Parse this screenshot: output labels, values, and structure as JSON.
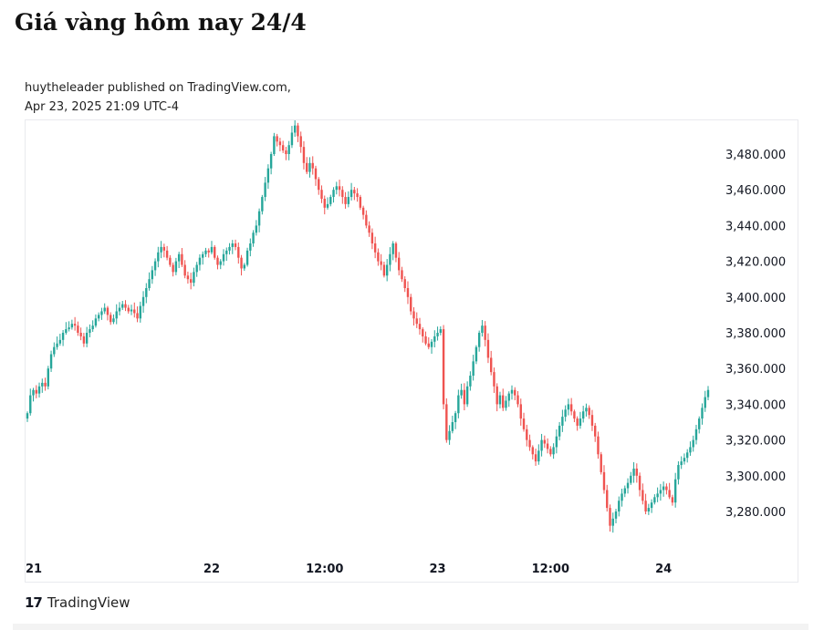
{
  "page": {
    "title": "Giá vàng hôm nay 24/4",
    "byline": "huytheleader published on TradingView.com,",
    "timestamp": "Apr 23, 2025 21:09 UTC-4",
    "brand_logo": "17",
    "brand_name": "TradingView",
    "brand_icon": "tradingview-logo-icon"
  },
  "colors": {
    "up": "#26a69a",
    "down": "#ef5350"
  },
  "chart_data": {
    "type": "candlestick",
    "title": "",
    "xlabel": "",
    "ylabel": "",
    "ylim": [
      3260,
      3500
    ],
    "y_ticks": [
      {
        "value": 3480,
        "label": "3,480.000"
      },
      {
        "value": 3460,
        "label": "3,460.000"
      },
      {
        "value": 3440,
        "label": "3,440.000"
      },
      {
        "value": 3420,
        "label": "3,420.000"
      },
      {
        "value": 3400,
        "label": "3,400.000"
      },
      {
        "value": 3380,
        "label": "3,380.000"
      },
      {
        "value": 3360,
        "label": "3,360.000"
      },
      {
        "value": 3340,
        "label": "3,340.000"
      },
      {
        "value": 3320,
        "label": "3,320.000"
      },
      {
        "value": 3300,
        "label": "3,300.000"
      },
      {
        "value": 3280,
        "label": "3,280.000"
      }
    ],
    "x_ticks": [
      {
        "label": "21",
        "index": 0
      },
      {
        "label": "22",
        "index": 62
      },
      {
        "label": "12:00",
        "index": 100
      },
      {
        "label": "23",
        "index": 138
      },
      {
        "label": "12:00",
        "index": 176
      },
      {
        "label": "24",
        "index": 214
      }
    ],
    "series": [
      {
        "closes": [
          3335,
          3345,
          3348,
          3346,
          3350,
          3352,
          3350,
          3360,
          3368,
          3372,
          3374,
          3376,
          3380,
          3382,
          3383,
          3385,
          3384,
          3380,
          3378,
          3374,
          3380,
          3382,
          3384,
          3388,
          3390,
          3392,
          3394,
          3390,
          3386,
          3388,
          3392,
          3394,
          3396,
          3394,
          3392,
          3393,
          3391,
          3388,
          3395,
          3400,
          3405,
          3410,
          3415,
          3420,
          3425,
          3428,
          3426,
          3422,
          3418,
          3414,
          3420,
          3424,
          3418,
          3412,
          3410,
          3408,
          3414,
          3418,
          3422,
          3424,
          3426,
          3425,
          3428,
          3422,
          3418,
          3420,
          3424,
          3426,
          3428,
          3430,
          3428,
          3422,
          3416,
          3418,
          3426,
          3430,
          3436,
          3440,
          3448,
          3456,
          3464,
          3472,
          3480,
          3490,
          3487,
          3485,
          3482,
          3480,
          3485,
          3492,
          3496,
          3490,
          3484,
          3475,
          3470,
          3475,
          3472,
          3466,
          3460,
          3455,
          3450,
          3452,
          3456,
          3460,
          3462,
          3460,
          3456,
          3452,
          3456,
          3460,
          3458,
          3456,
          3450,
          3446,
          3440,
          3436,
          3430,
          3425,
          3420,
          3418,
          3412,
          3418,
          3424,
          3430,
          3422,
          3415,
          3410,
          3405,
          3400,
          3392,
          3388,
          3385,
          3382,
          3378,
          3374,
          3372,
          3375,
          3378,
          3380,
          3382,
          3340,
          3320,
          3325,
          3330,
          3335,
          3345,
          3348,
          3340,
          3350,
          3356,
          3364,
          3372,
          3380,
          3384,
          3376,
          3366,
          3358,
          3350,
          3340,
          3345,
          3338,
          3342,
          3346,
          3348,
          3345,
          3340,
          3332,
          3326,
          3320,
          3316,
          3312,
          3308,
          3314,
          3320,
          3318,
          3315,
          3312,
          3316,
          3322,
          3328,
          3333,
          3337,
          3340,
          3336,
          3332,
          3328,
          3332,
          3336,
          3338,
          3334,
          3328,
          3322,
          3312,
          3302,
          3292,
          3282,
          3272,
          3276,
          3280,
          3286,
          3290,
          3293,
          3296,
          3300,
          3304,
          3300,
          3292,
          3286,
          3280,
          3282,
          3285,
          3288,
          3290,
          3292,
          3294,
          3292,
          3288,
          3285,
          3298,
          3306,
          3308,
          3310,
          3313,
          3316,
          3320,
          3326,
          3332,
          3338,
          3344,
          3348
        ]
      }
    ],
    "grid": false,
    "legend": "none"
  }
}
